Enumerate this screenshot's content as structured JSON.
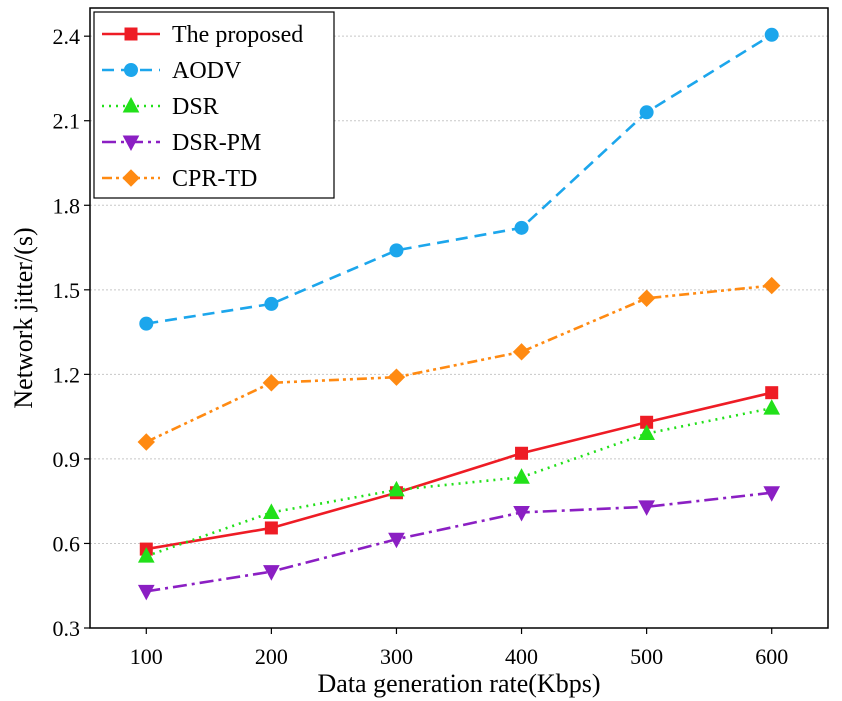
{
  "chart_data": {
    "type": "line",
    "title": "",
    "xlabel": "Data generation rate(Kbps)",
    "ylabel": "Network jitter/(s)",
    "categories": [
      "100",
      "200",
      "300",
      "400",
      "500",
      "600"
    ],
    "x": [
      100,
      200,
      300,
      400,
      500,
      600
    ],
    "xlim": [
      55,
      645
    ],
    "ylim": [
      0.3,
      2.5
    ],
    "yticks": [
      "0.3",
      "0.6",
      "0.9",
      "1.2",
      "1.5",
      "1.8",
      "2.1",
      "2.4"
    ],
    "grid": "horizontal dotted",
    "legend_position": "top-left",
    "series": [
      {
        "name": "The proposed",
        "color": "#ee1c25",
        "dash": "solid",
        "marker": "square",
        "values": [
          0.58,
          0.655,
          0.78,
          0.92,
          1.03,
          1.135
        ]
      },
      {
        "name": "AODV",
        "color": "#1ca6ec",
        "dash": "dashed",
        "marker": "circle",
        "values": [
          1.38,
          1.45,
          1.64,
          1.72,
          2.13,
          2.405
        ]
      },
      {
        "name": "DSR",
        "color": "#22e01a",
        "dash": "dotted",
        "marker": "triangle-up",
        "values": [
          0.555,
          0.71,
          0.79,
          0.835,
          0.99,
          1.08
        ]
      },
      {
        "name": "DSR-PM",
        "color": "#8b1fc3",
        "dash": "dash-dot",
        "marker": "triangle-down",
        "values": [
          0.43,
          0.5,
          0.615,
          0.71,
          0.73,
          0.78
        ]
      },
      {
        "name": "CPR-TD",
        "color": "#ff8a12",
        "dash": "dash-dot-dot",
        "marker": "diamond",
        "values": [
          0.96,
          1.17,
          1.19,
          1.28,
          1.47,
          1.515
        ]
      }
    ]
  }
}
